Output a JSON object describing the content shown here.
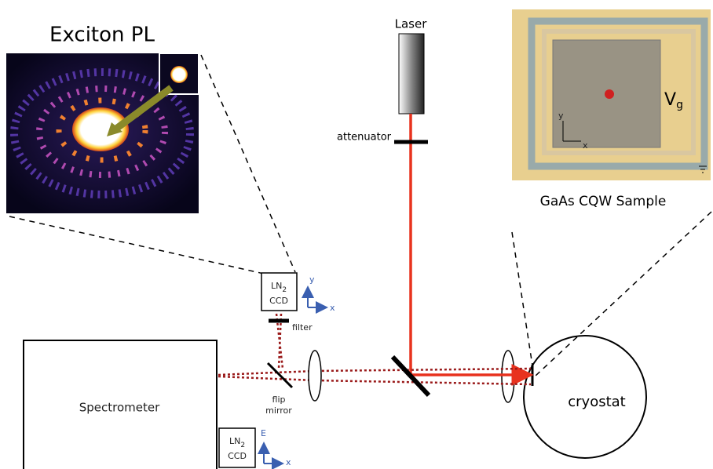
{
  "exciton_pl": {
    "title": "Exciton PL"
  },
  "laser": {
    "label": "Laser",
    "attenuator": "attenuator"
  },
  "sample": {
    "caption": "GaAs CQW Sample",
    "gate": {
      "main": "V",
      "sub": "g"
    },
    "axis_y": "y",
    "axis_x": "x"
  },
  "imaging_ccd": {
    "label_top": {
      "main": "LN",
      "sub": "2"
    },
    "label_bottom": "CCD",
    "axis_y": "y",
    "axis_x": "x",
    "filter": "filter"
  },
  "flip_mirror": {
    "line1": "flip",
    "line2": "mirror"
  },
  "spectrometer": {
    "label": "Spectrometer"
  },
  "spectrometer_ccd": {
    "label_top": {
      "main": "LN",
      "sub": "2"
    },
    "label_bottom": "CCD",
    "axis_e": "E",
    "axis_x": "x"
  },
  "cryostat": {
    "label": "cryostat"
  }
}
